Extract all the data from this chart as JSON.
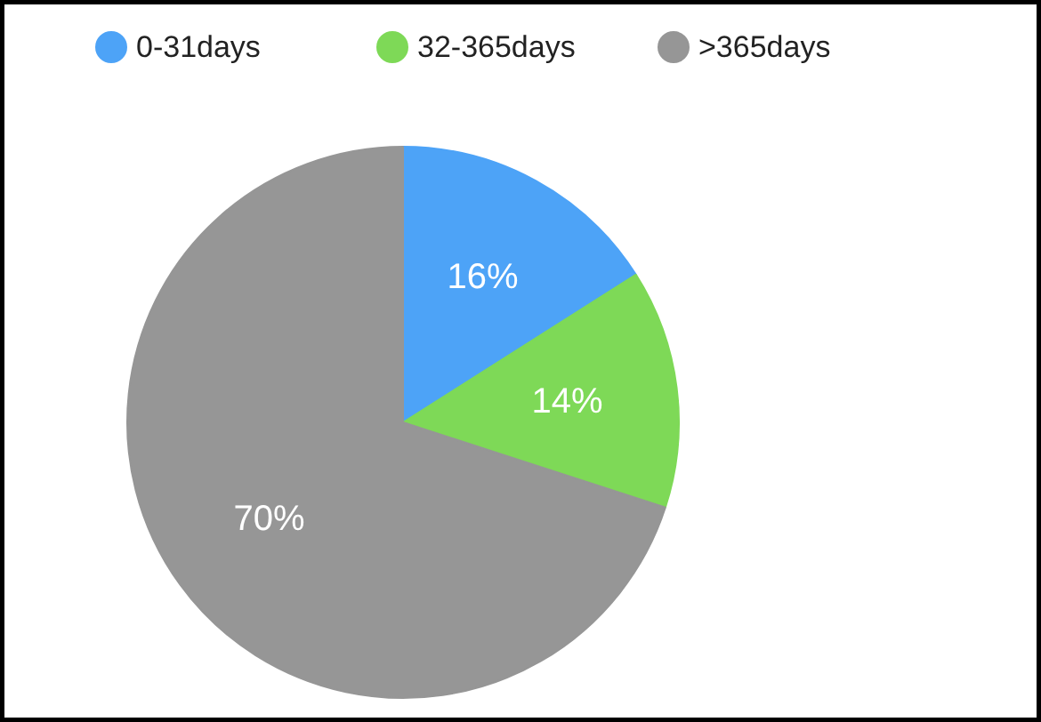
{
  "chart_data": {
    "type": "pie",
    "categories": [
      "0-31days",
      "32-365days",
      ">365days"
    ],
    "values": [
      16,
      14,
      70
    ],
    "colors": [
      "#4da3f7",
      "#7ed957",
      "#969696"
    ],
    "value_labels": [
      "16%",
      "14%",
      "70%"
    ],
    "legend": "top"
  }
}
